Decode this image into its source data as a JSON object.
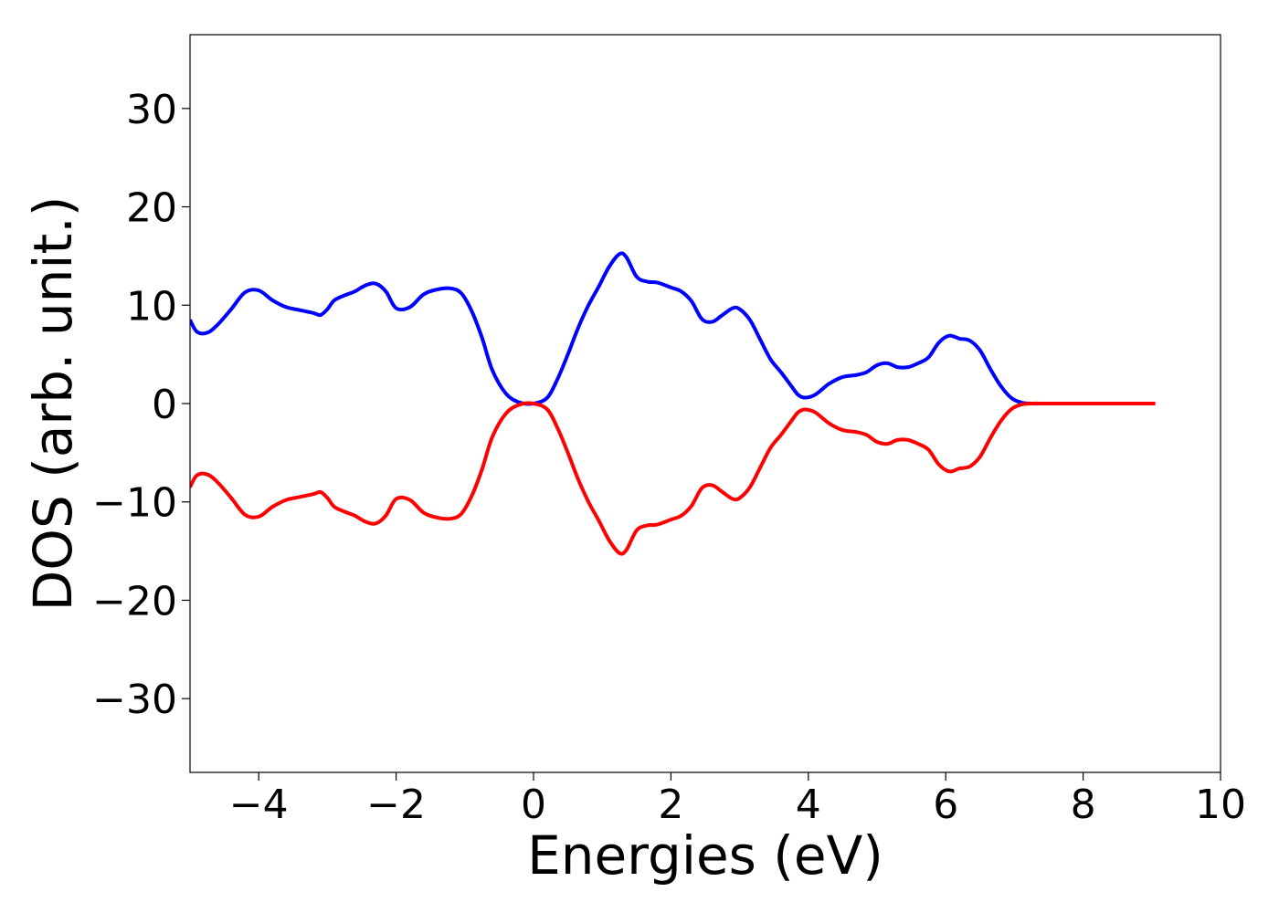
{
  "chart_data": {
    "type": "line",
    "title": "",
    "xlabel": "Energies (eV)",
    "ylabel": "DOS (arb. unit.)",
    "xlim": [
      -5,
      10
    ],
    "ylim": [
      -37.5,
      37.5
    ],
    "xticks": [
      -4,
      -2,
      0,
      2,
      4,
      6,
      8,
      10
    ],
    "yticks": [
      -30,
      -20,
      -10,
      0,
      10,
      20,
      30
    ],
    "xtick_labels": [
      "−4",
      "−2",
      "0",
      "2",
      "4",
      "6",
      "8",
      "10"
    ],
    "ytick_labels": [
      "−30",
      "−20",
      "−10",
      "0",
      "10",
      "20",
      "30"
    ],
    "grid": false,
    "legend": "none",
    "series": [
      {
        "color": "#0000ff",
        "x": [
          -5.0,
          -4.9,
          -4.75,
          -4.6,
          -4.4,
          -4.2,
          -4.0,
          -3.8,
          -3.6,
          -3.4,
          -3.2,
          -3.1,
          -3.0,
          -2.9,
          -2.75,
          -2.6,
          -2.45,
          -2.3,
          -2.15,
          -2.0,
          -1.8,
          -1.6,
          -1.4,
          -1.2,
          -1.05,
          -0.9,
          -0.75,
          -0.6,
          -0.4,
          -0.2,
          0.0,
          0.2,
          0.35,
          0.5,
          0.65,
          0.8,
          0.95,
          1.1,
          1.25,
          1.35,
          1.5,
          1.65,
          1.8,
          2.0,
          2.15,
          2.3,
          2.45,
          2.6,
          2.75,
          2.9,
          3.0,
          3.15,
          3.3,
          3.45,
          3.6,
          3.75,
          3.85,
          3.95,
          4.1,
          4.3,
          4.5,
          4.7,
          4.85,
          5.0,
          5.15,
          5.3,
          5.45,
          5.6,
          5.75,
          5.9,
          6.05,
          6.2,
          6.35,
          6.5,
          6.65,
          6.8,
          6.95,
          7.1,
          7.25,
          7.5,
          8.0,
          8.5,
          9.05
        ],
        "y": [
          8.5,
          7.3,
          7.2,
          8.0,
          9.6,
          11.3,
          11.5,
          10.5,
          9.8,
          9.5,
          9.2,
          9.0,
          9.6,
          10.5,
          11.0,
          11.4,
          12.0,
          12.2,
          11.4,
          9.7,
          9.8,
          11.1,
          11.6,
          11.7,
          11.2,
          9.4,
          6.7,
          3.4,
          1.0,
          0.1,
          0.0,
          0.6,
          2.5,
          5.0,
          7.7,
          10.0,
          11.9,
          13.9,
          15.2,
          14.9,
          12.9,
          12.4,
          12.3,
          11.8,
          11.4,
          10.4,
          8.6,
          8.3,
          9.0,
          9.7,
          9.6,
          8.5,
          6.5,
          4.5,
          3.2,
          1.8,
          0.9,
          0.6,
          0.9,
          2.0,
          2.7,
          2.9,
          3.2,
          3.9,
          4.1,
          3.7,
          3.7,
          4.1,
          4.7,
          6.2,
          6.9,
          6.6,
          6.4,
          5.4,
          3.5,
          1.8,
          0.6,
          0.1,
          0.0,
          0.0,
          0.0,
          0.0,
          0.0
        ]
      },
      {
        "color": "#ff0000",
        "x": [
          -5.0,
          -4.9,
          -4.75,
          -4.6,
          -4.4,
          -4.2,
          -4.0,
          -3.8,
          -3.6,
          -3.4,
          -3.2,
          -3.1,
          -3.0,
          -2.9,
          -2.75,
          -2.6,
          -2.45,
          -2.3,
          -2.15,
          -2.0,
          -1.8,
          -1.6,
          -1.4,
          -1.2,
          -1.05,
          -0.9,
          -0.75,
          -0.6,
          -0.4,
          -0.2,
          0.0,
          0.2,
          0.35,
          0.5,
          0.65,
          0.8,
          0.95,
          1.1,
          1.25,
          1.35,
          1.5,
          1.65,
          1.8,
          2.0,
          2.15,
          2.3,
          2.45,
          2.6,
          2.75,
          2.9,
          3.0,
          3.15,
          3.3,
          3.45,
          3.6,
          3.75,
          3.85,
          3.95,
          4.1,
          4.3,
          4.5,
          4.7,
          4.85,
          5.0,
          5.15,
          5.3,
          5.45,
          5.6,
          5.75,
          5.9,
          6.05,
          6.2,
          6.35,
          6.5,
          6.65,
          6.8,
          6.95,
          7.1,
          7.25,
          7.5,
          8.0,
          8.5,
          9.05
        ],
        "y": [
          -8.5,
          -7.3,
          -7.2,
          -8.0,
          -9.6,
          -11.3,
          -11.5,
          -10.5,
          -9.8,
          -9.5,
          -9.2,
          -9.0,
          -9.6,
          -10.5,
          -11.0,
          -11.4,
          -12.0,
          -12.2,
          -11.4,
          -9.7,
          -9.8,
          -11.1,
          -11.6,
          -11.7,
          -11.2,
          -9.4,
          -6.7,
          -3.4,
          -1.0,
          -0.1,
          0.0,
          -0.6,
          -2.5,
          -5.0,
          -7.7,
          -10.0,
          -11.9,
          -13.9,
          -15.2,
          -14.9,
          -12.9,
          -12.4,
          -12.3,
          -11.8,
          -11.4,
          -10.4,
          -8.6,
          -8.3,
          -9.0,
          -9.7,
          -9.6,
          -8.5,
          -6.5,
          -4.5,
          -3.2,
          -1.8,
          -0.9,
          -0.6,
          -0.9,
          -2.0,
          -2.7,
          -2.9,
          -3.2,
          -3.9,
          -4.1,
          -3.7,
          -3.7,
          -4.1,
          -4.7,
          -6.2,
          -6.9,
          -6.6,
          -6.4,
          -5.4,
          -3.5,
          -1.8,
          -0.6,
          -0.1,
          0.0,
          0.0,
          0.0,
          0.0,
          0.0
        ]
      }
    ]
  }
}
